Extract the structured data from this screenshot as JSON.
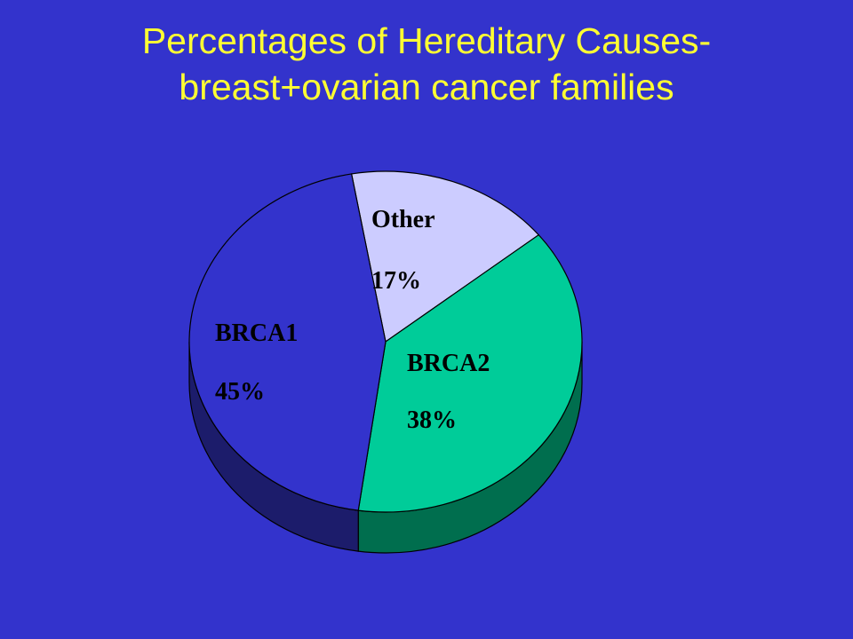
{
  "title": {
    "line1": "Percentages of Hereditary Causes-",
    "line2": "breast+ovarian cancer families"
  },
  "colors": {
    "background": "#3333cc",
    "title": "#ffff33",
    "outline": "#000000"
  },
  "chart_data": {
    "type": "pie",
    "style": "3d",
    "title": "Percentages of Hereditary Causes- breast+ovarian cancer families",
    "slices": [
      {
        "name": "Other",
        "value": 17,
        "label": "17%",
        "color": "#ccccff",
        "side_color": "#8f8fbf"
      },
      {
        "name": "BRCA2",
        "value": 38,
        "label": "38%",
        "color": "#00cc99",
        "side_color": "#006e4e"
      },
      {
        "name": "BRCA1",
        "value": 45,
        "label": "45%",
        "color": "#3333cc",
        "side_color": "#1c1c6b"
      }
    ]
  }
}
